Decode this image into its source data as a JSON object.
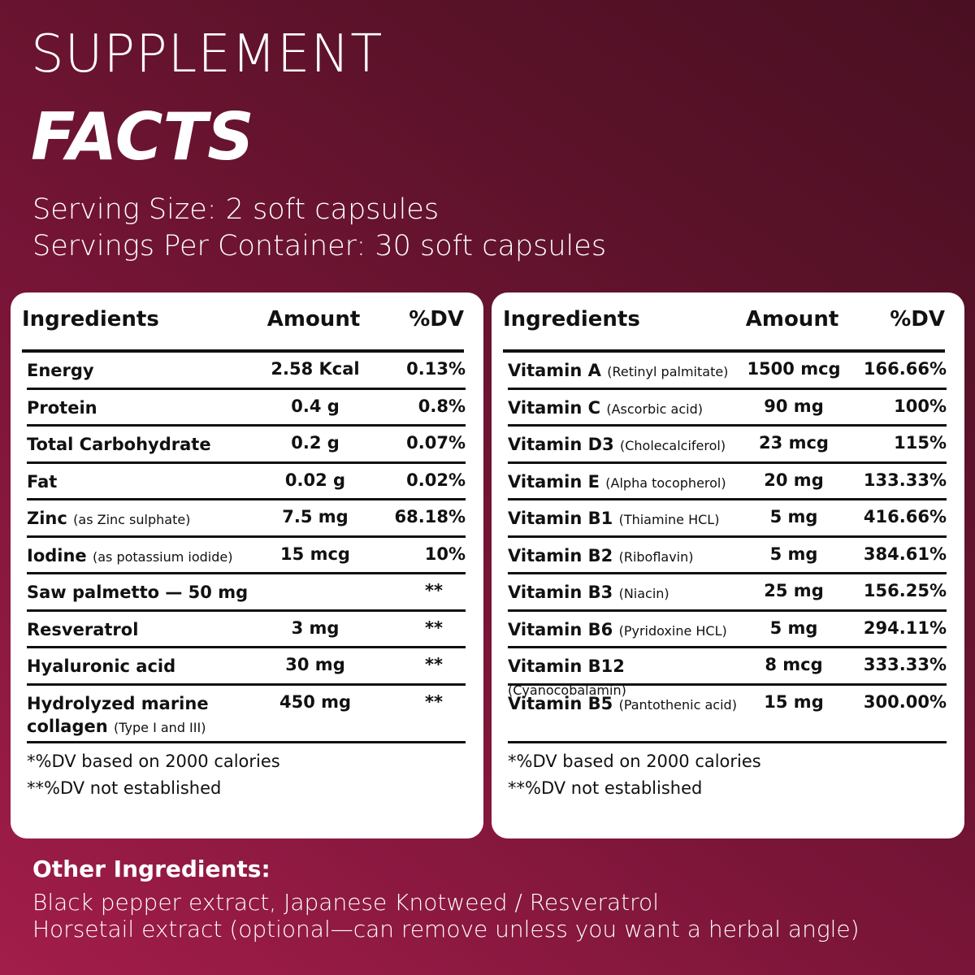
{
  "header": {
    "title_line1": "SUPPLEMENT",
    "title_line2": "FACTS",
    "serving_size": "Serving Size: 2 soft capsules",
    "servings_per_container": "Servings Per Container: 30 soft capsules"
  },
  "tables": [
    {
      "columns": [
        "Ingredients",
        "Amount",
        "%DV"
      ],
      "rows": [
        {
          "name": "Energy",
          "amount": "2.58 Kcal",
          "dv": "0.13%"
        },
        {
          "name": "Protein",
          "amount": "0.4 g",
          "dv": "0.8%"
        },
        {
          "name": "Total Carbohydrate",
          "amount": "0.2 g",
          "dv": "0.07%"
        },
        {
          "name": "Fat",
          "amount": "0.02 g",
          "dv": "0.02%"
        },
        {
          "name": "Zinc",
          "note": "(as Zinc sulphate)",
          "amount": "7.5 mg",
          "dv": "68.18%"
        },
        {
          "name": "Iodine",
          "note": "(as potassium iodide)",
          "amount": "15 mcg",
          "dv": "10%"
        },
        {
          "name": "Saw palmetto — 50 mg",
          "dv": "**"
        },
        {
          "name": "Resveratrol",
          "amount": "3 mg",
          "dv": "**"
        },
        {
          "name": "Hyaluronic acid",
          "amount": "30 mg",
          "dv": "**"
        },
        {
          "name": "Hydrolyzed marine collagen",
          "note": "(Type I and III)",
          "amount": "450 mg",
          "dv": "**"
        }
      ],
      "footnotes": [
        "*%DV based on 2000 calories",
        "**%DV not established"
      ]
    },
    {
      "columns": [
        "Ingredients",
        "Amount",
        "%DV"
      ],
      "rows": [
        {
          "name": "Vitamin A",
          "note": "(Retinyl palmitate)",
          "amount": "1500 mcg",
          "dv": "166.66%"
        },
        {
          "name": "Vitamin C",
          "note": "(Ascorbic acid)",
          "amount": "90 mg",
          "dv": "100%"
        },
        {
          "name": "Vitamin D3",
          "note": "(Cholecalciferol)",
          "amount": "23 mcg",
          "dv": "115%"
        },
        {
          "name": "Vitamin E",
          "note": "(Alpha tocopherol)",
          "amount": "20 mg",
          "dv": "133.33%"
        },
        {
          "name": "Vitamin B1",
          "note": "(Thiamine HCL)",
          "amount": "5 mg",
          "dv": "416.66%"
        },
        {
          "name": "Vitamin B2",
          "note": "(Riboflavin)",
          "amount": "5 mg",
          "dv": "384.61%"
        },
        {
          "name": "Vitamin B3",
          "note": "(Niacin)",
          "amount": "25 mg",
          "dv": "156.25%"
        },
        {
          "name": "Vitamin B6",
          "note": "(Pyridoxine HCL)",
          "amount": "5 mg",
          "dv": "294.11%"
        },
        {
          "name": "Vitamin B12",
          "note": "(Cyanocobalamin)",
          "amount": "8 mcg",
          "dv": "333.33%"
        },
        {
          "name": "Vitamin B5",
          "note": "(Pantothenic acid)",
          "amount": "15 mg",
          "dv": "300.00%"
        }
      ],
      "footnotes": [
        "*%DV based on 2000 calories",
        "**%DV not established"
      ]
    }
  ],
  "other_ingredients": {
    "heading": "Other Ingredients:",
    "lines": [
      "Black pepper extract, Japanese Knotweed / Resveratrol",
      "Horsetail extract (optional—can remove unless you want a herbal angle)"
    ]
  }
}
